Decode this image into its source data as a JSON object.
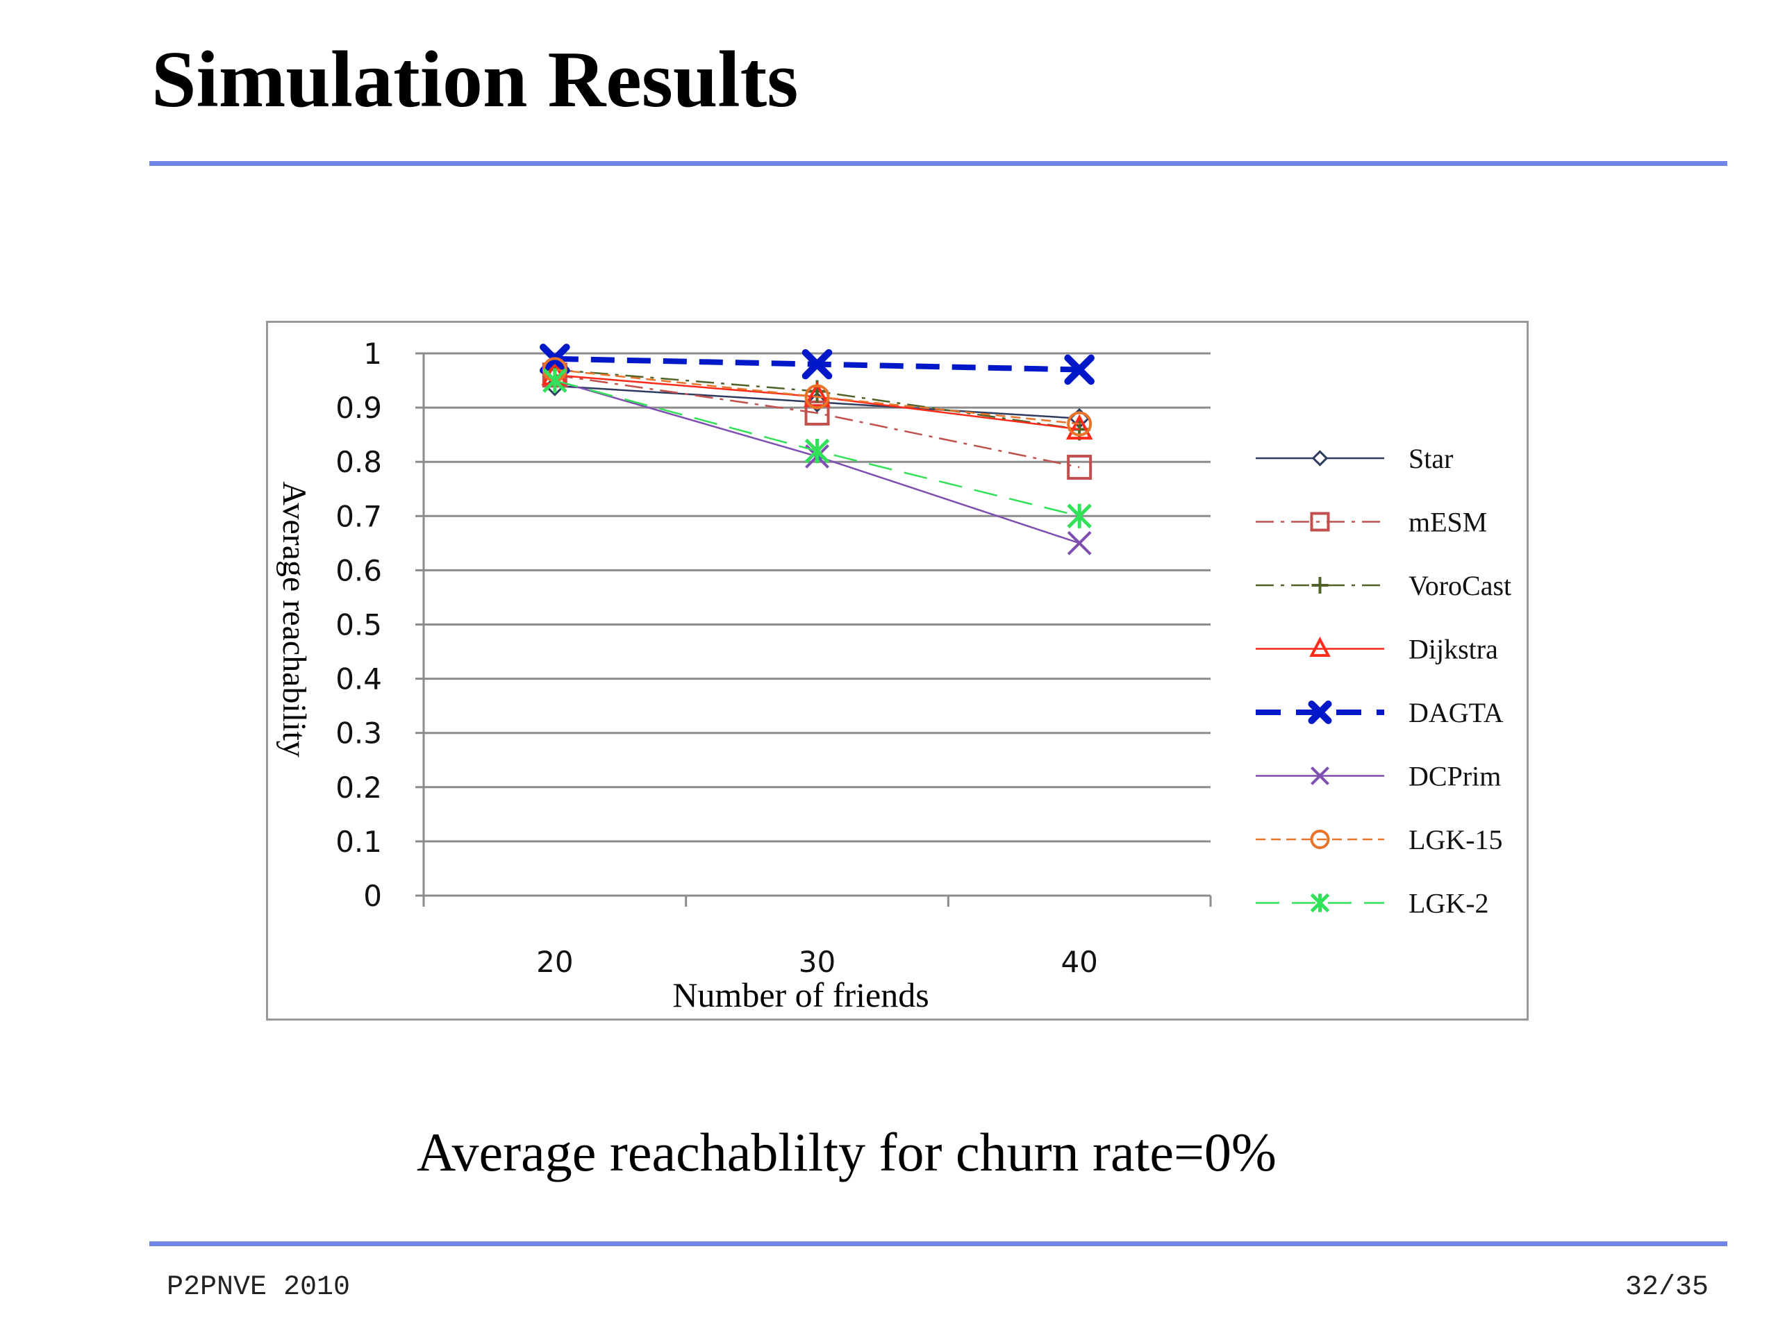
{
  "slide": {
    "title": "Simulation Results",
    "caption": "Average reachablilty for churn rate=0%",
    "footer_left": "P2PNVE  2010",
    "footer_right": "32/35",
    "rule_color": "#6f86e6"
  },
  "chart_data": {
    "type": "line",
    "title": "",
    "xlabel": "Number of friends",
    "ylabel": "Average  reachability",
    "x": [
      20,
      30,
      40
    ],
    "ylim": [
      0,
      1
    ],
    "yticks": [
      "0",
      "0.1",
      "0.2",
      "0.3",
      "0.4",
      "0.5",
      "0.6",
      "0.7",
      "0.8",
      "0.9",
      "1"
    ],
    "grid": true,
    "legend_position": "right",
    "series": [
      {
        "name": "Star",
        "values": [
          0.94,
          0.91,
          0.88
        ],
        "color": "#2e3d5f",
        "dash": "solid",
        "marker": "diamond",
        "width": 2.5
      },
      {
        "name": "mESM",
        "values": [
          0.96,
          0.89,
          0.79
        ],
        "color": "#c0504d",
        "dash": "dashdot",
        "marker": "square",
        "width": 2.5
      },
      {
        "name": "VoroCast",
        "values": [
          0.97,
          0.93,
          0.86
        ],
        "color": "#4f6228",
        "dash": "dashdot",
        "marker": "plus",
        "width": 2.5
      },
      {
        "name": "Dijkstra",
        "values": [
          0.96,
          0.92,
          0.86
        ],
        "color": "#ff2a1a",
        "dash": "solid",
        "marker": "triangle",
        "width": 2.5
      },
      {
        "name": "DAGTA",
        "values": [
          0.99,
          0.98,
          0.97
        ],
        "color": "#0018c8",
        "dash": "dash",
        "marker": "x-bold",
        "width": 8
      },
      {
        "name": "DCPrim",
        "values": [
          0.95,
          0.81,
          0.65
        ],
        "color": "#7e4fb0",
        "dash": "solid",
        "marker": "x",
        "width": 2.5
      },
      {
        "name": "LGK-15",
        "values": [
          0.97,
          0.92,
          0.87
        ],
        "color": "#e8742a",
        "dash": "dash-short",
        "marker": "circle",
        "width": 2.5
      },
      {
        "name": "LGK-2",
        "values": [
          0.95,
          0.82,
          0.7
        ],
        "color": "#33e05a",
        "dash": "dash",
        "marker": "asterisk",
        "width": 2.5
      }
    ]
  }
}
